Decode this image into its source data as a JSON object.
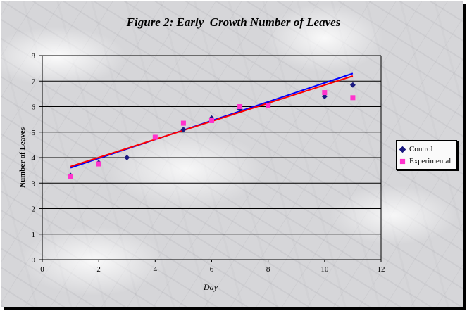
{
  "chart_data": {
    "type": "scatter",
    "title": "Figure 2: Early  Growth Number of Leaves",
    "xlabel": "Day",
    "ylabel": "Number of Leaves",
    "xlim": [
      0,
      12
    ],
    "ylim": [
      0,
      8
    ],
    "xticks": [
      0,
      2,
      4,
      6,
      8,
      10,
      12
    ],
    "yticks": [
      0,
      1,
      2,
      3,
      4,
      5,
      6,
      7,
      8
    ],
    "grid": "horizontal",
    "legend_position": "right",
    "series": [
      {
        "name": "Control",
        "marker": "diamond",
        "color": "#1a1a80",
        "trendline_color": "#0000ff",
        "points": [
          {
            "x": 1,
            "y": 3.3
          },
          {
            "x": 2,
            "y": 3.8
          },
          {
            "x": 3,
            "y": 4.0
          },
          {
            "x": 5,
            "y": 5.1
          },
          {
            "x": 6,
            "y": 5.55
          },
          {
            "x": 7,
            "y": 5.9
          },
          {
            "x": 8,
            "y": 6.1
          },
          {
            "x": 10,
            "y": 6.4
          },
          {
            "x": 11,
            "y": 6.85
          }
        ],
        "trendline": {
          "x": [
            1,
            11
          ],
          "y": [
            3.6,
            7.3
          ]
        }
      },
      {
        "name": "Experimental",
        "marker": "square",
        "color": "#ff33cc",
        "trendline_color": "#ff0000",
        "points": [
          {
            "x": 1,
            "y": 3.25
          },
          {
            "x": 2,
            "y": 3.75
          },
          {
            "x": 4,
            "y": 4.8
          },
          {
            "x": 5,
            "y": 5.35
          },
          {
            "x": 6,
            "y": 5.45
          },
          {
            "x": 7,
            "y": 6.0
          },
          {
            "x": 8,
            "y": 6.05
          },
          {
            "x": 10,
            "y": 6.55
          },
          {
            "x": 11,
            "y": 6.35
          }
        ],
        "trendline": {
          "x": [
            1,
            11
          ],
          "y": [
            3.65,
            7.2
          ]
        }
      }
    ]
  }
}
